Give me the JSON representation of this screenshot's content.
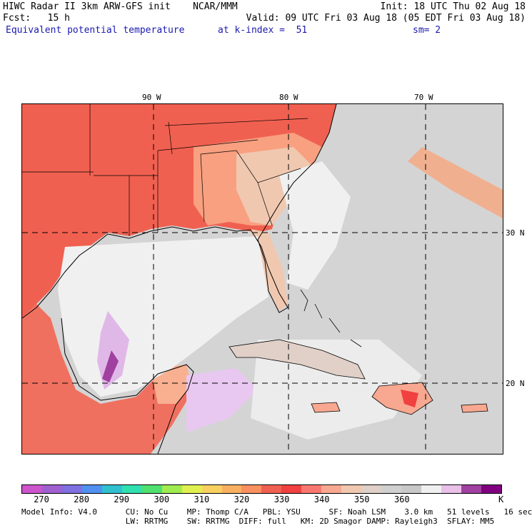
{
  "header": {
    "line1_left": "HIWC Radar II 3km ARW-GFS init    NCAR/MMM",
    "line1_right": "Init: 18 UTC Thu 02 Aug 18",
    "line2_left": "Fcst:   15 h",
    "line2_right": "Valid: 09 UTC Fri 03 Aug 18 (05 EDT Fri 03 Aug 18)",
    "field_name": "Equivalent potential temperature",
    "field_level": "at k-index =  51",
    "smoothing": "sm= 2"
  },
  "map": {
    "longitude_labels": [
      "90 W",
      "80 W",
      "70 W"
    ],
    "latitude_labels": [
      "30 N",
      "20 N"
    ]
  },
  "colorbar": {
    "colors": [
      "#cc55cc",
      "#a060d0",
      "#8070e0",
      "#5090f0",
      "#30c0d0",
      "#30e0b0",
      "#50e070",
      "#a0ec50",
      "#e0f050",
      "#f8d060",
      "#f8b060",
      "#f89060",
      "#f06050",
      "#f04040",
      "#f87870",
      "#f8a890",
      "#f0c8b0",
      "#e0d0c8",
      "#d0d0d0",
      "#c8c8c8",
      "#f0f0f0",
      "#e8c0e8",
      "#a040a0",
      "#800080"
    ],
    "tick_labels": [
      "270",
      "280",
      "290",
      "300",
      "310",
      "320",
      "330",
      "340",
      "350",
      "360"
    ],
    "unit": "K"
  },
  "footer": {
    "line1": "Model Info: V4.0      CU: No Cu    MP: Thomp C/A   PBL: YSU      SF: Noah LSM    3.0 km   51 levels   16 sec",
    "line2": "                      LW: RRTMG    SW: RRTMG  DIFF: full   KM: 2D Smagor DAMP: Rayleigh3  SFLAY: MM5"
  }
}
